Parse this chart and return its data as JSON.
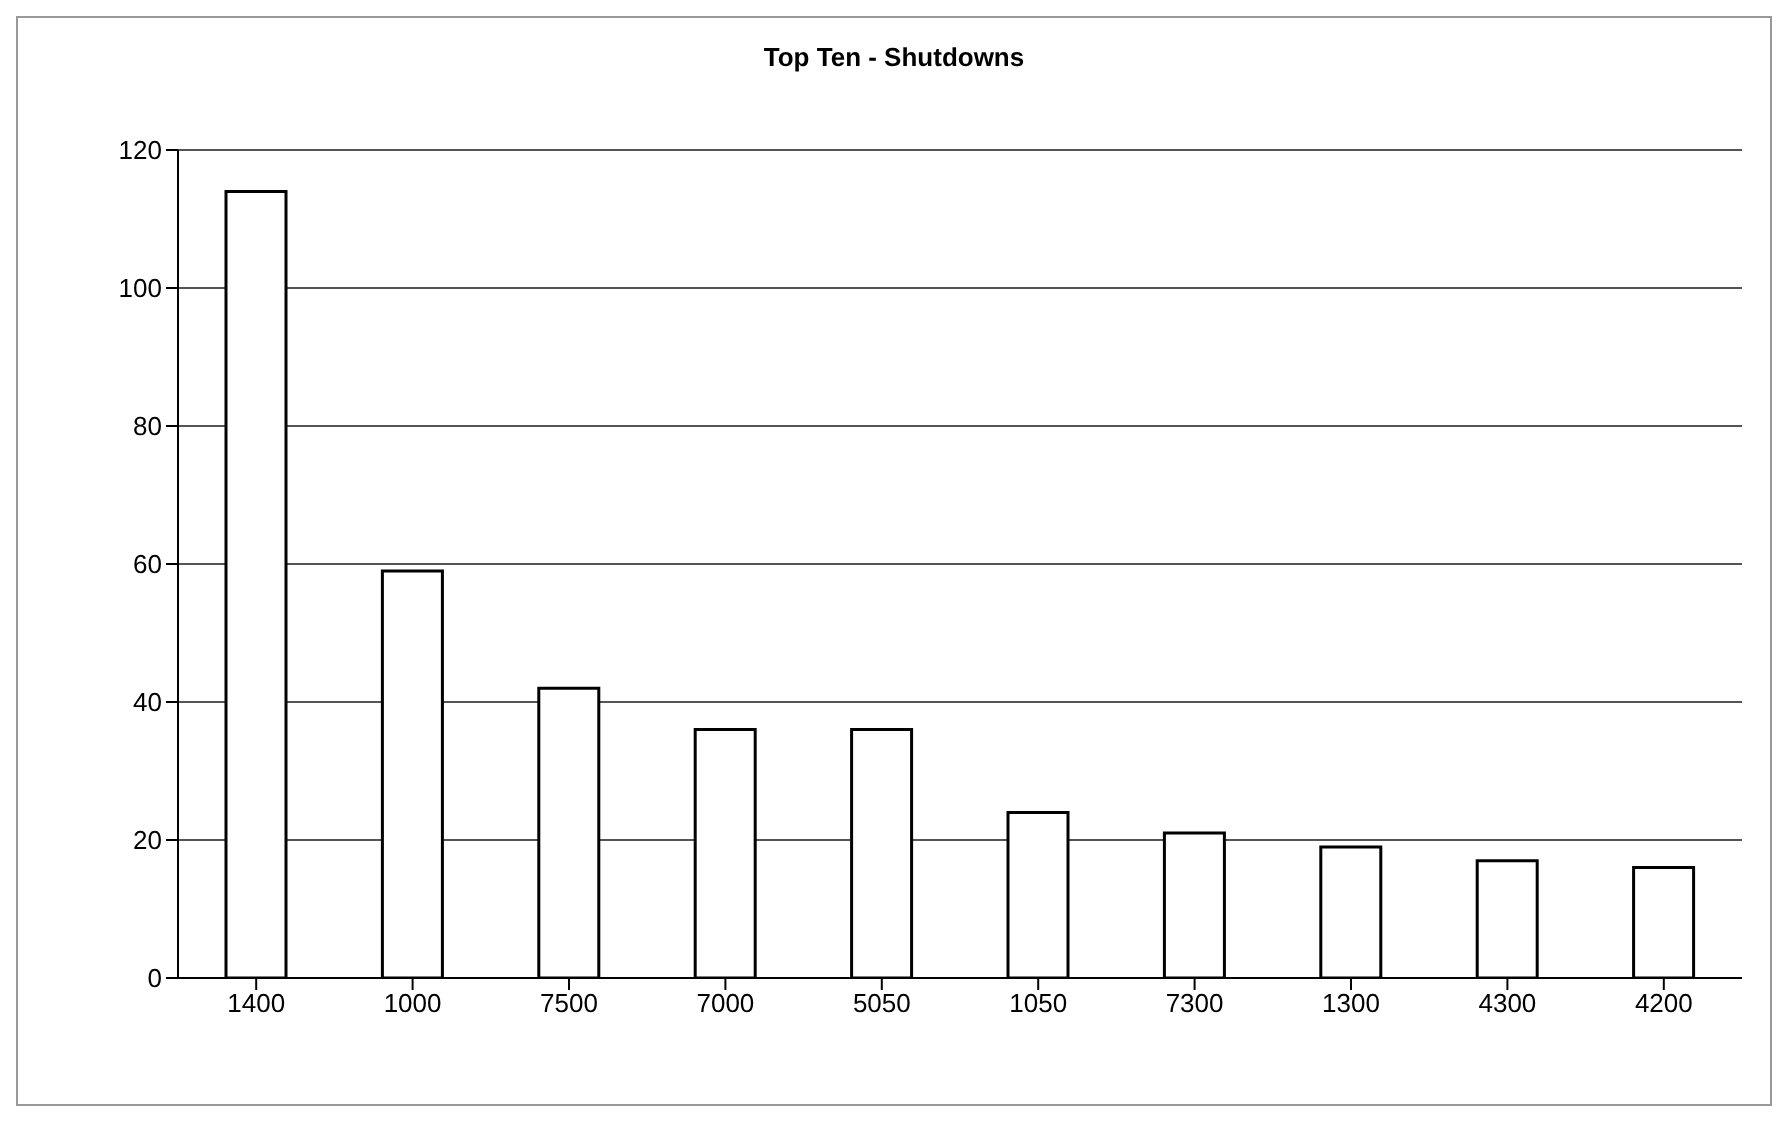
{
  "chart_data": {
    "type": "bar",
    "title": "Top Ten - Shutdowns",
    "categories": [
      "1400",
      "1000",
      "7500",
      "7000",
      "5050",
      "1050",
      "7300",
      "1300",
      "4300",
      "4200"
    ],
    "values": [
      114,
      59,
      42,
      36,
      36,
      24,
      21,
      19,
      17,
      16
    ],
    "color": "#ffffff",
    "ylim": [
      0,
      120
    ],
    "yticks": [
      0,
      20,
      40,
      60,
      80,
      100,
      120
    ],
    "grid": "y"
  }
}
